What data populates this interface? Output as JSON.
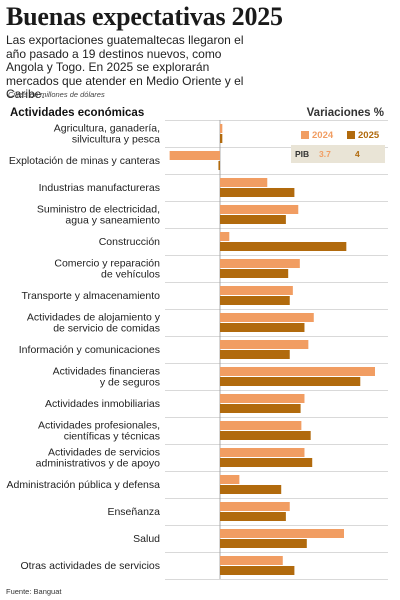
{
  "header": {
    "title": "Buenas expectativas 2025",
    "subtitle": "Las exportaciones guatemaltecas llegaron el año pasado a 19 destinos nuevos, como Angola y Togo. En 2025 se explorarán mercados que atender en Medio Oriente y el Caribe.",
    "unit_note": "Cifras en millones de dólares",
    "sector_header": "Actividades económicas",
    "variation_header": "Variaciones %"
  },
  "legend": {
    "label_2024": "2024",
    "label_2025": "2025",
    "pib_label": "PIB",
    "pib_2024": "3.7",
    "pib_2025": "4"
  },
  "colors": {
    "series_2024": "#f19d62",
    "series_2025": "#b16a0d",
    "grid": "#cccccc",
    "pib_bg": "#e9e4d6"
  },
  "source": "Fuente: Banguat",
  "chart_data": {
    "type": "bar",
    "orientation": "horizontal",
    "title": "Buenas expectativas 2025",
    "xlabel": "Variaciones %",
    "ylabel": "Actividades económicas",
    "xlim": [
      -7,
      22
    ],
    "grid": true,
    "legend_position": "top-right",
    "categories": [
      [
        "Agricultura, ganadería,",
        "silvicultura y pesca"
      ],
      [
        "Explotación de minas y canteras"
      ],
      [
        "Industrias manufactureras"
      ],
      [
        "Suministro de electricidad,",
        "agua y saneamiento"
      ],
      [
        "Construcción"
      ],
      [
        "Comercio y reparación",
        "de vehículos"
      ],
      [
        "Transporte y almacenamiento"
      ],
      [
        "Actividades de alojamiento y",
        "de servicio de comidas"
      ],
      [
        "Información y comunicaciones"
      ],
      [
        "Actividades financieras",
        "y de seguros"
      ],
      [
        "Actividades inmobiliarias"
      ],
      [
        "Actividades profesionales,",
        "científicas y técnicas"
      ],
      [
        "Actividades de servicios",
        "administrativos y de apoyo"
      ],
      [
        "Administración pública y defensa"
      ],
      [
        "Enseñanza"
      ],
      [
        "Salud"
      ],
      [
        "Otras actividades de servicios"
      ]
    ],
    "series": [
      {
        "name": "2024",
        "values": [
          0.3,
          -6.5,
          6.1,
          10.1,
          1.2,
          10.3,
          9.4,
          12.1,
          11.4,
          20.0,
          10.9,
          10.5,
          10.9,
          2.5,
          9.0,
          16.0,
          8.1
        ]
      },
      {
        "name": "2025",
        "values": [
          0.3,
          -0.2,
          9.6,
          8.5,
          16.3,
          8.8,
          9.0,
          10.9,
          9.0,
          18.1,
          10.4,
          11.7,
          11.9,
          7.9,
          8.5,
          11.2,
          9.6
        ]
      }
    ]
  }
}
